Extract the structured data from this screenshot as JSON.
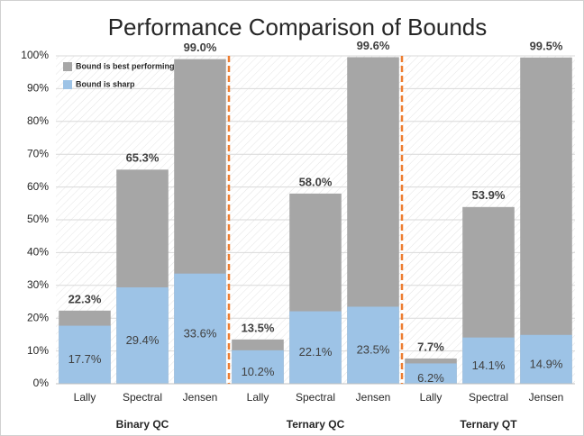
{
  "chart_data": {
    "type": "bar",
    "title": "Performance Comparison of Bounds",
    "categories": [
      "Lally",
      "Spectral",
      "Jensen",
      "Lally",
      "Spectral",
      "Jensen",
      "Lally",
      "Spectral",
      "Jensen"
    ],
    "groups": [
      "Binary QC",
      "Ternary QC",
      "Ternary QT"
    ],
    "series": [
      {
        "name": "Bound is best performing",
        "color": "#a6a6a6",
        "values": [
          22.3,
          65.3,
          99.0,
          13.5,
          58.0,
          99.6,
          7.7,
          53.9,
          99.5
        ],
        "value_labels": [
          "22.3%",
          "65.3%",
          "99.0%",
          "13.5%",
          "58.0%",
          "99.6%",
          "7.7%",
          "53.9%",
          "99.5%"
        ]
      },
      {
        "name": "Bound is sharp",
        "color": "#9dc3e6",
        "values": [
          17.7,
          29.4,
          33.6,
          10.2,
          22.1,
          23.5,
          6.2,
          14.1,
          14.9
        ],
        "value_labels": [
          "17.7%",
          "29.4%",
          "33.6%",
          "10.2%",
          "22.1%",
          "23.5%",
          "6.2%",
          "14.1%",
          "14.9%"
        ]
      }
    ],
    "ylim": [
      0,
      100
    ],
    "yticks": [
      {
        "value": 0,
        "label": "0%"
      },
      {
        "value": 10,
        "label": "10%"
      },
      {
        "value": 20,
        "label": "20%"
      },
      {
        "value": 30,
        "label": "30%"
      },
      {
        "value": 40,
        "label": "40%"
      },
      {
        "value": 50,
        "label": "50%"
      },
      {
        "value": 60,
        "label": "60%"
      },
      {
        "value": 70,
        "label": "70%"
      },
      {
        "value": 80,
        "label": "80%"
      },
      {
        "value": 90,
        "label": "90%"
      },
      {
        "value": 100,
        "label": "100%"
      }
    ],
    "grid": true,
    "legend": "top-left",
    "separator_color": "#ed7d31"
  }
}
